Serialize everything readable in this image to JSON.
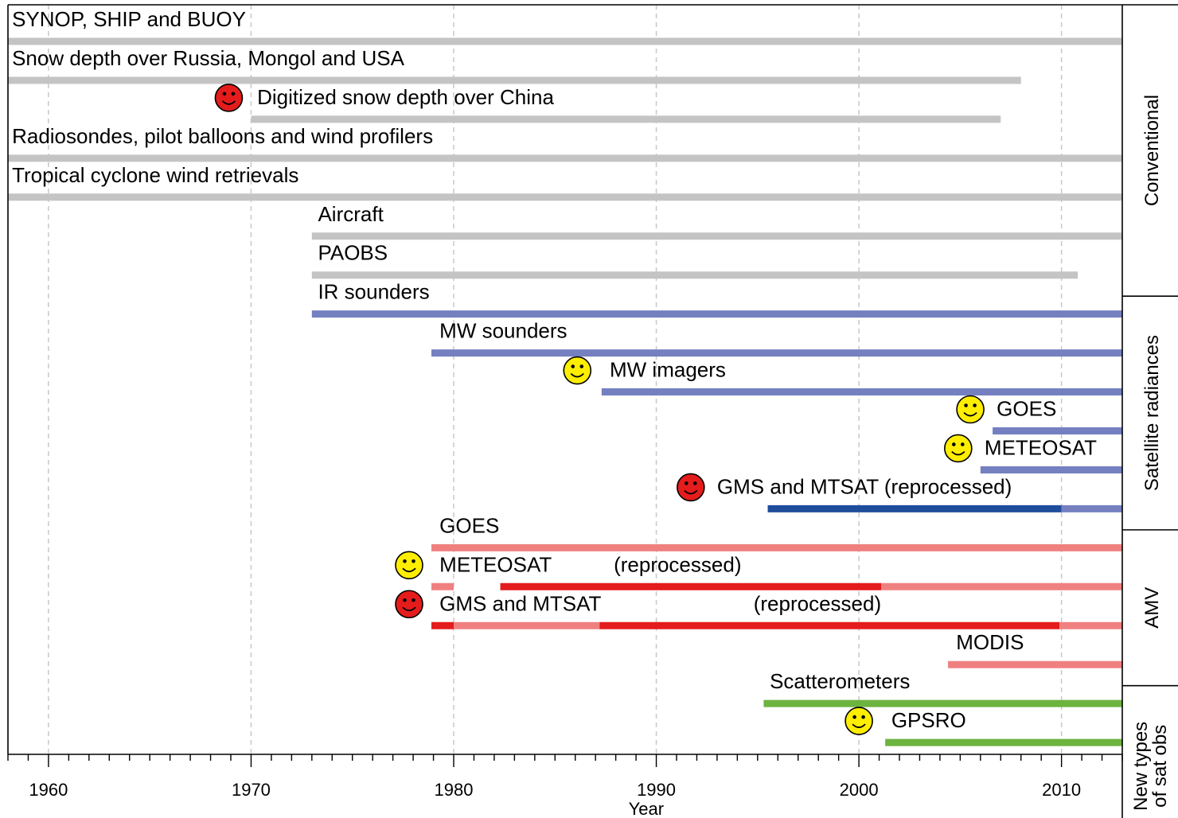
{
  "chart_data": {
    "type": "timeline",
    "xlabel": "Year",
    "xlim": [
      1958,
      2013
    ],
    "major_ticks": [
      1960,
      1970,
      1980,
      1990,
      2000,
      2010
    ],
    "colors": {
      "conventional": "#c4c4c4",
      "satellite_radiance": "#7480c0",
      "satellite_radiance_reprocessed": "#1f4d9c",
      "amv": "#f08080",
      "amv_reprocessed": "#e41c1c",
      "new_obs": "#6db33f",
      "face_new_inclusion": "#ffee00",
      "face_reprocessed": "#e41c1c"
    },
    "groups": [
      {
        "label": "Conventional",
        "rows": [
          0,
          6
        ]
      },
      {
        "label": "Satellite radiances",
        "rows": [
          7,
          12
        ]
      },
      {
        "label": "AMV",
        "rows": [
          13,
          16
        ]
      },
      {
        "label": [
          "New types",
          "of sat obs"
        ],
        "rows": [
          17,
          18
        ]
      }
    ],
    "rows": [
      {
        "label": "SYNOP, SHIP and BUOY",
        "label_x": 1958.2,
        "segments": [
          {
            "start": 1958,
            "end": 2013,
            "color": "conventional"
          }
        ]
      },
      {
        "label": "Snow depth over Russia, Mongol and USA",
        "label_x": 1958.2,
        "segments": [
          {
            "start": 1958,
            "end": 2008,
            "color": "conventional"
          }
        ]
      },
      {
        "label": "Digitized snow depth over China",
        "label_x": 1970.3,
        "face": {
          "color": "face_reprocessed",
          "x": 1968.9
        },
        "segments": [
          {
            "start": 1970,
            "end": 2007,
            "color": "conventional"
          }
        ]
      },
      {
        "label": "Radiosondes, pilot balloons and wind profilers",
        "label_x": 1958.2,
        "segments": [
          {
            "start": 1958,
            "end": 2013,
            "color": "conventional"
          }
        ]
      },
      {
        "label": "Tropical cyclone wind retrievals",
        "label_x": 1958.2,
        "segments": [
          {
            "start": 1958,
            "end": 2013,
            "color": "conventional"
          }
        ]
      },
      {
        "label": "Aircraft",
        "label_x": 1973.3,
        "segments": [
          {
            "start": 1973,
            "end": 2013,
            "color": "conventional"
          }
        ]
      },
      {
        "label": "PAOBS",
        "label_x": 1973.3,
        "segments": [
          {
            "start": 1973,
            "end": 2010.8,
            "color": "conventional"
          }
        ]
      },
      {
        "label": "IR sounders",
        "label_x": 1973.3,
        "segments": [
          {
            "start": 1973,
            "end": 2013,
            "color": "satellite_radiance"
          }
        ]
      },
      {
        "label": "MW sounders",
        "label_x": 1979.3,
        "segments": [
          {
            "start": 1978.9,
            "end": 2013,
            "color": "satellite_radiance"
          }
        ]
      },
      {
        "label": "MW imagers",
        "label_x": 1987.7,
        "face": {
          "color": "face_new_inclusion",
          "x": 1986.1
        },
        "segments": [
          {
            "start": 1987.3,
            "end": 2013,
            "color": "satellite_radiance"
          }
        ]
      },
      {
        "label": "GOES",
        "label_x": 2006.8,
        "face": {
          "color": "face_new_inclusion",
          "x": 2005.5
        },
        "segments": [
          {
            "start": 2006.6,
            "end": 2013,
            "color": "satellite_radiance"
          }
        ]
      },
      {
        "label": "METEOSAT",
        "label_x": 2006.2,
        "face": {
          "color": "face_new_inclusion",
          "x": 2004.9
        },
        "segments": [
          {
            "start": 2006,
            "end": 2013,
            "color": "satellite_radiance"
          }
        ]
      },
      {
        "label": "GMS and MTSAT (reprocessed)",
        "label_x": 1993,
        "face": {
          "color": "face_reprocessed",
          "x": 1991.7
        },
        "segments": [
          {
            "start": 1995.5,
            "end": 2010,
            "color": "satellite_radiance_reprocessed"
          },
          {
            "start": 2010,
            "end": 2013,
            "color": "satellite_radiance"
          }
        ]
      },
      {
        "label": "GOES",
        "label_x": 1979.3,
        "segments": [
          {
            "start": 1978.9,
            "end": 2013,
            "color": "amv"
          }
        ]
      },
      {
        "label": "METEOSAT",
        "label_x": 1979.3,
        "note": "(reprocessed)",
        "note_x": 1987.9,
        "face": {
          "color": "face_new_inclusion",
          "x": 1977.8
        },
        "segments": [
          {
            "start": 1978.9,
            "end": 1980,
            "color": "amv"
          },
          {
            "start": 1982.3,
            "end": 2001.1,
            "color": "amv_reprocessed"
          },
          {
            "start": 2001.1,
            "end": 2013,
            "color": "amv"
          }
        ]
      },
      {
        "label": "GMS and MTSAT",
        "label_x": 1979.3,
        "note": "(reprocessed)",
        "note_x": 1994.8,
        "face": {
          "color": "face_reprocessed",
          "x": 1977.8
        },
        "segments": [
          {
            "start": 1978.9,
            "end": 1980,
            "color": "amv_reprocessed"
          },
          {
            "start": 1980,
            "end": 1987.2,
            "color": "amv"
          },
          {
            "start": 1987.2,
            "end": 2009.9,
            "color": "amv_reprocessed"
          },
          {
            "start": 2009.9,
            "end": 2013,
            "color": "amv"
          }
        ]
      },
      {
        "label": "MODIS",
        "label_x": 2004.8,
        "segments": [
          {
            "start": 2004.4,
            "end": 2013,
            "color": "amv"
          }
        ]
      },
      {
        "label": "Scatterometers",
        "label_x": 1995.6,
        "segments": [
          {
            "start": 1995.3,
            "end": 2013,
            "color": "new_obs"
          }
        ]
      },
      {
        "label": "GPSRO",
        "label_x": 2001.6,
        "face": {
          "color": "face_new_inclusion",
          "x": 2000
        },
        "segments": [
          {
            "start": 2001.3,
            "end": 2013,
            "color": "new_obs"
          }
        ]
      }
    ]
  }
}
